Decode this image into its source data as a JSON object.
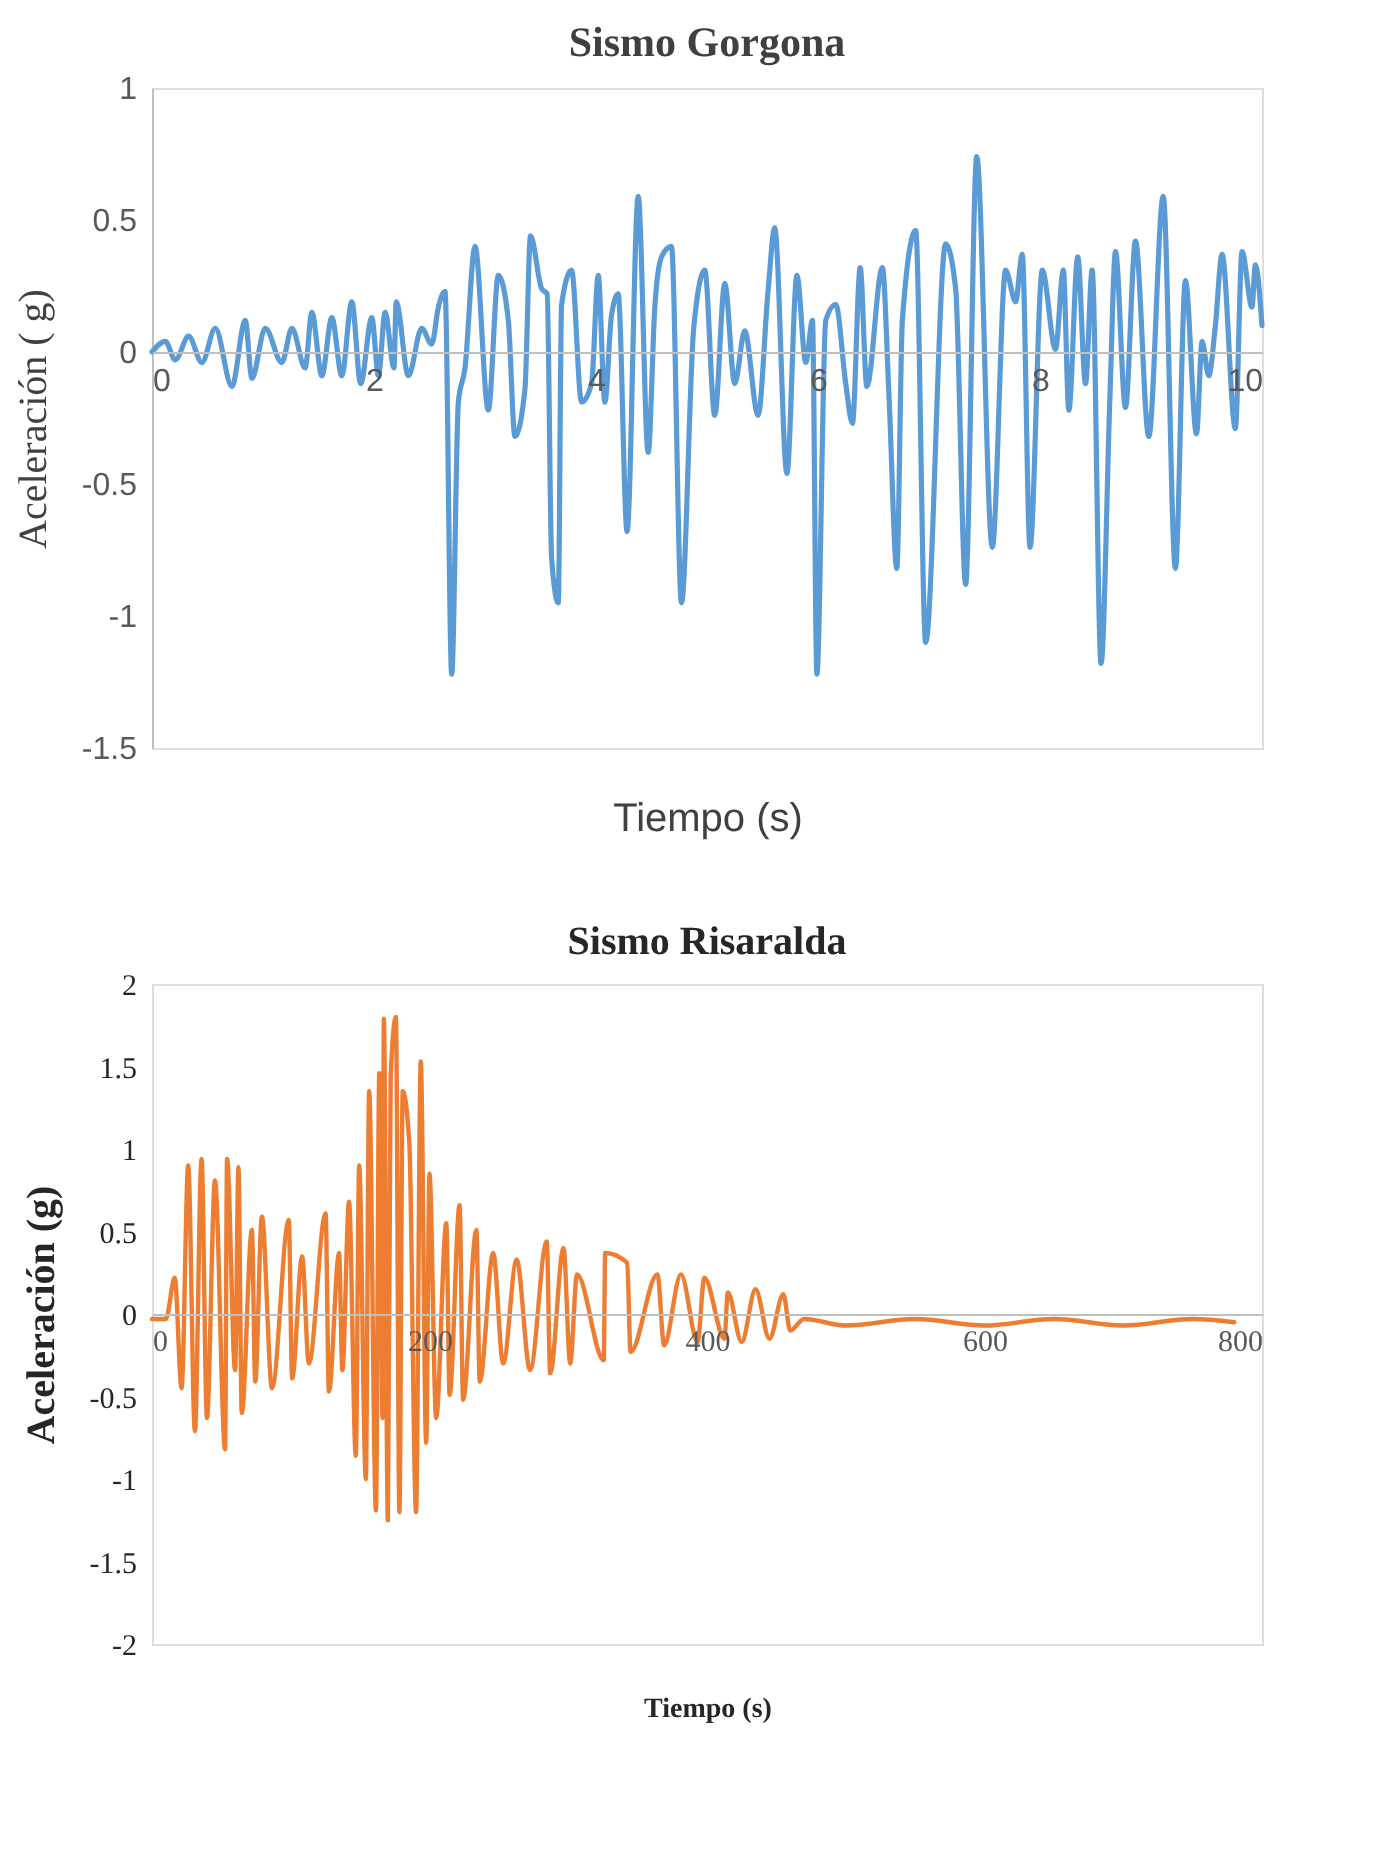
{
  "chart_data": [
    {
      "type": "line",
      "title": "Sismo Gorgona",
      "xlabel": "Tiempo (s)",
      "ylabel": "Aceleración ( g)",
      "xlim": [
        0,
        10
      ],
      "ylim": [
        -1.5,
        1
      ],
      "xticks": [
        0,
        2,
        4,
        6,
        8,
        10
      ],
      "yticks": [
        -1.5,
        -1,
        -0.5,
        0,
        0.5,
        1
      ],
      "grid": false,
      "series": [
        {
          "color": "#5b9bd5",
          "x": [
            0,
            0.12,
            0.21,
            0.33,
            0.45,
            0.57,
            0.72,
            0.84,
            0.9,
            1.02,
            1.17,
            1.26,
            1.38,
            1.44,
            1.53,
            1.62,
            1.71,
            1.8,
            1.88,
            1.98,
            2.04,
            2.1,
            2.18,
            2.2,
            2.31,
            2.43,
            2.52,
            2.58,
            2.64,
            2.7,
            2.76,
            2.82,
            2.91,
            3.03,
            3.12,
            3.21,
            3.27,
            3.36,
            3.41,
            3.51,
            3.56,
            3.6,
            3.66,
            3.69,
            3.78,
            3.87,
            3.96,
            4.02,
            4.08,
            4.14,
            4.2,
            4.28,
            4.38,
            4.47,
            4.53,
            4.59,
            4.68,
            4.77,
            4.88,
            4.98,
            5.07,
            5.16,
            5.25,
            5.34,
            5.46,
            5.55,
            5.61,
            5.72,
            5.81,
            5.89,
            5.95,
            5.99,
            6.07,
            6.16,
            6.25,
            6.31,
            6.38,
            6.44,
            6.58,
            6.64,
            6.71,
            6.76,
            6.88,
            6.97,
            7.15,
            7.24,
            7.33,
            7.43,
            7.57,
            7.69,
            7.78,
            7.84,
            7.91,
            8.02,
            8.14,
            8.21,
            8.26,
            8.34,
            8.41,
            8.47,
            8.55,
            8.63,
            8.68,
            8.77,
            8.86,
            8.98,
            9.11,
            9.22,
            9.31,
            9.41,
            9.46,
            9.52,
            9.58,
            9.64,
            9.76,
            9.82,
            9.91,
            9.94,
            10
          ],
          "values": [
            0,
            0.04,
            -0.03,
            0.06,
            -0.04,
            0.09,
            -0.13,
            0.12,
            -0.1,
            0.09,
            -0.04,
            0.09,
            -0.06,
            0.15,
            -0.09,
            0.13,
            -0.09,
            0.19,
            -0.12,
            0.13,
            -0.09,
            0.15,
            -0.06,
            0.19,
            -0.09,
            0.09,
            0.03,
            0.17,
            0.23,
            -1.22,
            -0.19,
            -0.06,
            0.4,
            -0.22,
            0.29,
            0.12,
            -0.32,
            -0.14,
            0.44,
            0.24,
            0.22,
            -0.78,
            -0.95,
            0.18,
            0.31,
            -0.19,
            -0.12,
            0.29,
            -0.19,
            0.14,
            0.22,
            -0.68,
            0.59,
            -0.38,
            0.17,
            0.36,
            0.4,
            -0.95,
            0.09,
            0.31,
            -0.24,
            0.26,
            -0.12,
            0.08,
            -0.24,
            0.23,
            0.47,
            -0.46,
            0.29,
            -0.04,
            0.12,
            -1.22,
            0.12,
            0.18,
            -0.12,
            -0.27,
            0.32,
            -0.13,
            0.32,
            -0.17,
            -0.82,
            0.12,
            0.46,
            -1.1,
            0.41,
            0.24,
            -0.88,
            0.74,
            -0.74,
            0.31,
            0.19,
            0.37,
            -0.74,
            0.31,
            0.01,
            0.31,
            -0.22,
            0.36,
            -0.12,
            0.31,
            -1.18,
            -0.17,
            0.38,
            -0.21,
            0.42,
            -0.32,
            0.59,
            -0.82,
            0.27,
            -0.31,
            0.04,
            -0.09,
            0.1,
            0.37,
            -0.29,
            0.38,
            0.17,
            0.33,
            0.1
          ]
        }
      ]
    },
    {
      "type": "line",
      "title": "Sismo Risaralda",
      "xlabel": "Tiempo (s)",
      "ylabel": "Aceleración (g)",
      "xlim": [
        0,
        800
      ],
      "ylim": [
        -2,
        2
      ],
      "xticks": [
        0,
        200,
        400,
        600,
        800
      ],
      "yticks": [
        -2,
        -1.5,
        -1,
        -0.5,
        0,
        0.5,
        1,
        1.5,
        2
      ],
      "grid": false,
      "series": [
        {
          "color": "#ed7d31",
          "x": [
            0,
            10,
            16.4,
            21.3,
            26.1,
            30.9,
            35.7,
            39.6,
            45.4,
            52.7,
            54.1,
            59.9,
            62.3,
            64.7,
            72,
            74.4,
            79.2,
            86.5,
            98.6,
            101,
            108.2,
            113,
            125.1,
            127.5,
            134.8,
            137.2,
            142,
            146.9,
            149.3,
            154.1,
            156.5,
            161.4,
            163.8,
            166.2,
            167.1,
            170,
            172,
            175.8,
            178.3,
            180.7,
            185.5,
            190.3,
            193.7,
            197.6,
            200,
            204.8,
            212.1,
            214.5,
            221.7,
            224.2,
            233.8,
            236.2,
            245.9,
            253.1,
            262.8,
            272.5,
            284.5,
            287,
            296.6,
            301.4,
            306.3,
            325.6,
            326.6,
            342.5,
            344.9,
            364.3,
            369.1,
            381.2,
            393.2,
            398.1,
            412.6,
            415,
            425,
            435,
            445,
            455,
            460,
            470,
            500,
            550,
            600,
            650,
            700,
            750,
            780
          ],
          "values": [
            -0.03,
            -0.03,
            0.22,
            -0.45,
            0.9,
            -0.71,
            0.94,
            -0.63,
            0.81,
            -0.82,
            0.94,
            -0.34,
            0.89,
            -0.6,
            0.51,
            -0.41,
            0.59,
            -0.45,
            0.57,
            -0.39,
            0.35,
            -0.3,
            0.61,
            -0.47,
            0.37,
            -0.34,
            0.68,
            -0.86,
            0.9,
            -1,
            1.35,
            -1.19,
            1.46,
            -0.63,
            1.79,
            -1.25,
            1.44,
            1.8,
            -1.2,
            1.35,
            1.03,
            -1.2,
            1.53,
            -0.78,
            0.85,
            -0.63,
            0.55,
            -0.49,
            0.66,
            -0.52,
            0.51,
            -0.41,
            0.37,
            -0.3,
            0.33,
            -0.34,
            0.44,
            -0.36,
            0.4,
            -0.3,
            0.24,
            -0.28,
            0.37,
            0.31,
            -0.23,
            0.24,
            -0.19,
            0.24,
            -0.17,
            0.22,
            -0.15,
            0.13,
            -0.17,
            0.15,
            -0.15,
            0.12,
            -0.1,
            -0.03,
            -0.07,
            -0.03,
            -0.07,
            -0.03,
            -0.07,
            -0.03,
            -0.05
          ]
        }
      ]
    }
  ]
}
